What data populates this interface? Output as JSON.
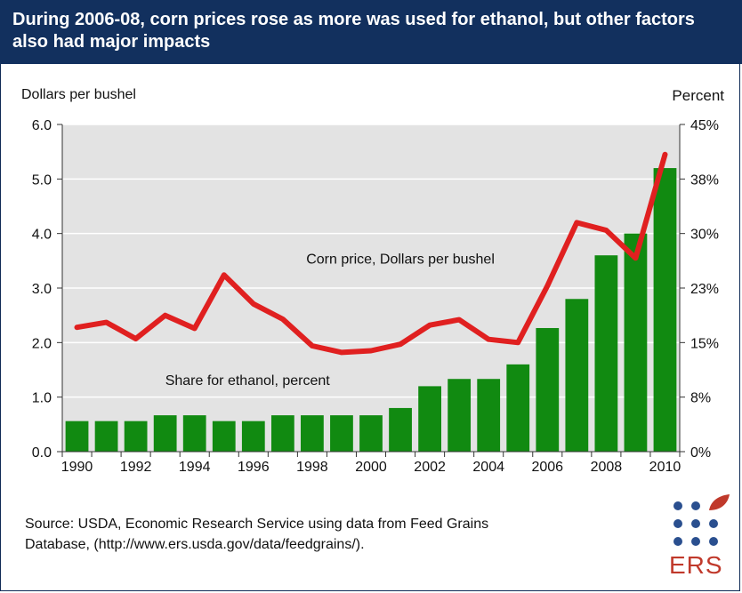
{
  "header": {
    "title": "During 2006-08, corn prices rose as more was used for ethanol, but other factors also had major impacts"
  },
  "axes": {
    "left_label": "Dollars per bushel",
    "right_label": "Percent"
  },
  "source": {
    "line1": "Source: USDA, Economic Research Service using data from Feed Grains",
    "line2": "Database, (http://www.ers.usda.gov/data/feedgrains/)."
  },
  "logo": {
    "text": "ERS",
    "dot_color": "#2a4f8f",
    "leaf_color": "#c0392b"
  },
  "chart_data": {
    "type": "bar",
    "title": "",
    "x": [
      1990,
      1991,
      1992,
      1993,
      1994,
      1995,
      1996,
      1997,
      1998,
      1999,
      2000,
      2001,
      2002,
      2003,
      2004,
      2005,
      2006,
      2007,
      2008,
      2009,
      2010
    ],
    "x_tick_labels": [
      "1990",
      "1992",
      "1994",
      "1996",
      "1998",
      "2000",
      "2002",
      "2004",
      "2006",
      "2008",
      "2010"
    ],
    "series": [
      {
        "name": "Share for ethanol, percent",
        "type": "bar",
        "axis": "right",
        "color": "#118a11",
        "values": [
          4.2,
          4.2,
          4.2,
          5.0,
          5.0,
          4.2,
          4.2,
          5.0,
          5.0,
          5.0,
          5.0,
          6.0,
          9.0,
          10.0,
          10.0,
          12.0,
          17.0,
          21.0,
          27.0,
          30.0,
          39.0
        ]
      },
      {
        "name": "Corn price, Dollars per bushel",
        "type": "line",
        "axis": "left",
        "color": "#e02020",
        "values": [
          2.28,
          2.37,
          2.07,
          2.5,
          2.26,
          3.24,
          2.71,
          2.43,
          1.94,
          1.82,
          1.85,
          1.97,
          2.32,
          2.42,
          2.06,
          2.0,
          3.04,
          4.2,
          4.06,
          3.55,
          5.45
        ]
      }
    ],
    "left_axis": {
      "label": "Dollars per bushel",
      "ylim": [
        0,
        6
      ],
      "ticks": [
        "0.0",
        "1.0",
        "2.0",
        "3.0",
        "4.0",
        "5.0",
        "6.0"
      ]
    },
    "right_axis": {
      "label": "Percent",
      "ylim": [
        0,
        45
      ],
      "ticks": [
        "0%",
        "8%",
        "15%",
        "23%",
        "30%",
        "38%",
        "45%"
      ]
    },
    "annotations": [
      {
        "text": "Corn price, Dollars per bushel",
        "x": 2001.0,
        "y_left": 3.45
      },
      {
        "text": "Share for ethanol, percent",
        "x": 1995.8,
        "y_left": 1.22
      }
    ],
    "grid": true,
    "plot_background": "#e3e3e3"
  }
}
